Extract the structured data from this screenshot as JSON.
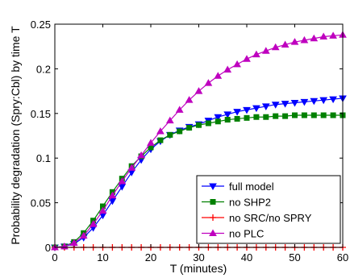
{
  "chart_data": {
    "type": "line",
    "title": "",
    "xlabel": "T (minutes)",
    "ylabel": "Probability degradation (Spry:Cbl) by time T",
    "xlim": [
      0,
      60
    ],
    "ylim": [
      0,
      0.25
    ],
    "xticks": [
      "0",
      "10",
      "20",
      "30",
      "40",
      "50",
      "60"
    ],
    "yticks": [
      "0",
      "0.05",
      "0.1",
      "0.15",
      "0.2",
      "0.25"
    ],
    "xtick_values": [
      0,
      10,
      20,
      30,
      40,
      50,
      60
    ],
    "ytick_values": [
      0,
      0.05,
      0.1,
      0.15,
      0.2,
      0.25
    ],
    "grid": false,
    "legend_position": "bottom-right",
    "x": [
      0,
      2,
      4,
      6,
      8,
      10,
      12,
      14,
      16,
      18,
      20,
      22,
      24,
      26,
      28,
      30,
      32,
      34,
      36,
      38,
      40,
      42,
      44,
      46,
      48,
      50,
      52,
      54,
      56,
      58,
      60
    ],
    "series": [
      {
        "name": "full model",
        "color": "#0000ff",
        "marker": "triangle-down",
        "values": [
          0,
          0.001,
          0.004,
          0.011,
          0.022,
          0.036,
          0.052,
          0.068,
          0.084,
          0.098,
          0.11,
          0.119,
          0.126,
          0.131,
          0.135,
          0.138,
          0.142,
          0.146,
          0.149,
          0.152,
          0.154,
          0.156,
          0.158,
          0.16,
          0.161,
          0.162,
          0.163,
          0.164,
          0.165,
          0.166,
          0.167
        ]
      },
      {
        "name": "no SHP2",
        "color": "#008000",
        "marker": "square",
        "values": [
          0,
          0.001,
          0.006,
          0.016,
          0.03,
          0.046,
          0.062,
          0.077,
          0.091,
          0.102,
          0.112,
          0.12,
          0.126,
          0.13,
          0.134,
          0.137,
          0.139,
          0.141,
          0.143,
          0.144,
          0.145,
          0.146,
          0.146,
          0.147,
          0.147,
          0.148,
          0.148,
          0.148,
          0.148,
          0.148,
          0.148
        ]
      },
      {
        "name": "no SRC/no SPRY",
        "color": "#ff0000",
        "marker": "plus",
        "values": [
          0,
          0,
          0,
          0,
          0,
          0,
          0,
          0,
          0,
          0,
          0,
          0,
          0,
          0,
          0,
          0,
          0,
          0,
          0,
          0,
          0,
          0,
          0,
          0,
          0,
          0,
          0,
          0,
          0,
          0,
          0
        ]
      },
      {
        "name": "no PLC",
        "color": "#bf00bf",
        "marker": "triangle-up",
        "values": [
          0,
          0.001,
          0.005,
          0.013,
          0.026,
          0.041,
          0.058,
          0.074,
          0.089,
          0.103,
          0.117,
          0.13,
          0.142,
          0.154,
          0.165,
          0.175,
          0.184,
          0.192,
          0.199,
          0.205,
          0.211,
          0.216,
          0.22,
          0.224,
          0.227,
          0.23,
          0.232,
          0.234,
          0.236,
          0.237,
          0.238
        ]
      }
    ]
  }
}
